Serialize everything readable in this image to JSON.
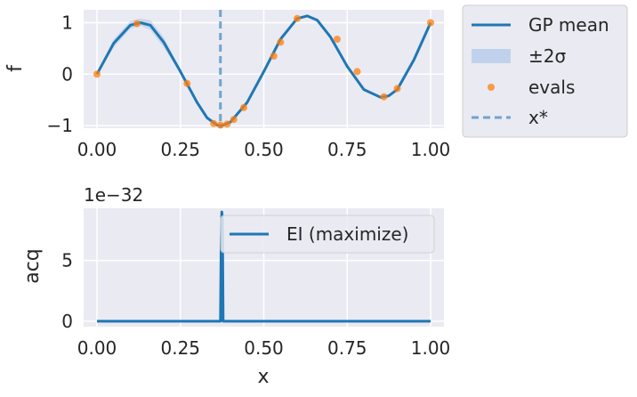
{
  "chart_data": [
    {
      "type": "line",
      "ylabel": "f",
      "xlim": [
        -0.04,
        1.04
      ],
      "ylim": [
        -1.05,
        1.25
      ],
      "xticks": [
        0.0,
        0.25,
        0.5,
        0.75,
        1.0
      ],
      "xtick_labels": [
        "0.00",
        "0.25",
        "0.50",
        "0.75",
        "1.00"
      ],
      "yticks": [
        -1,
        0,
        1
      ],
      "ytick_labels": [
        "−1",
        "0",
        "1"
      ],
      "grid": true,
      "legend_placement": "outside-right",
      "series": [
        {
          "name": "GP mean",
          "kind": "line",
          "color": "#1f77b4",
          "x": [
            0.0,
            0.05,
            0.1,
            0.13,
            0.16,
            0.2,
            0.25,
            0.3,
            0.33,
            0.36,
            0.375,
            0.4,
            0.45,
            0.5,
            0.55,
            0.6,
            0.63,
            0.66,
            0.7,
            0.75,
            0.8,
            0.85,
            0.875,
            0.9,
            0.95,
            1.0
          ],
          "y": [
            0.0,
            0.6,
            0.95,
            1.0,
            0.95,
            0.62,
            0.05,
            -0.55,
            -0.85,
            -0.99,
            -1.0,
            -0.93,
            -0.55,
            0.05,
            0.68,
            1.08,
            1.13,
            1.05,
            0.72,
            0.15,
            -0.3,
            -0.45,
            -0.42,
            -0.3,
            0.28,
            1.0
          ]
        },
        {
          "name": "±2σ",
          "kind": "band",
          "color": "#aec7e8",
          "x": [
            0.0,
            0.05,
            0.1,
            0.13,
            0.16,
            0.2,
            0.25
          ],
          "lower": [
            0.0,
            0.52,
            0.88,
            0.94,
            0.86,
            0.52,
            0.02
          ],
          "upper": [
            0.0,
            0.68,
            1.03,
            1.08,
            1.05,
            0.72,
            0.08
          ]
        },
        {
          "name": "evals",
          "kind": "scatter",
          "color": "#ff7f0e",
          "x": [
            0.0,
            0.12,
            0.27,
            0.35,
            0.37,
            0.39,
            0.41,
            0.44,
            0.53,
            0.55,
            0.6,
            0.72,
            0.78,
            0.86,
            0.9,
            1.0
          ],
          "y": [
            0.0,
            0.98,
            -0.18,
            -0.96,
            -0.99,
            -0.97,
            -0.88,
            -0.65,
            0.35,
            0.62,
            1.08,
            0.68,
            0.05,
            -0.44,
            -0.28,
            1.0
          ]
        },
        {
          "name": "x*",
          "kind": "vline",
          "color": "#1f77b4",
          "x": 0.37
        }
      ]
    },
    {
      "type": "line",
      "xlabel": "x",
      "ylabel": "acq",
      "offset_label": "1e−32",
      "xlim": [
        -0.04,
        1.04
      ],
      "ylim": [
        -0.45,
        9.3
      ],
      "xticks": [
        0.0,
        0.25,
        0.5,
        0.75,
        1.0
      ],
      "xtick_labels": [
        "0.00",
        "0.25",
        "0.50",
        "0.75",
        "1.00"
      ],
      "yticks": [
        0,
        5
      ],
      "ytick_labels": [
        "0",
        "5"
      ],
      "grid": true,
      "legend_placement": "upper-right",
      "series": [
        {
          "name": "EI (maximize)",
          "kind": "line",
          "color": "#1f77b4",
          "x": [
            0.0,
            0.37,
            0.372,
            0.374,
            0.376,
            0.378,
            1.0
          ],
          "y": [
            0.0,
            0.0,
            6.0,
            9.0,
            8.5,
            0.0,
            0.0
          ]
        }
      ]
    }
  ]
}
